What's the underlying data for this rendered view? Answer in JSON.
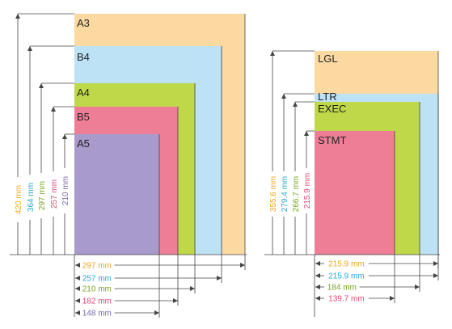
{
  "palette": {
    "orange": "#FCD9A0",
    "blue": "#BDE1F5",
    "green": "#BFD84A",
    "pink": "#EE7E96",
    "purple": "#A89ACB",
    "text_orange": "#F5A623",
    "text_blue": "#29A8D8",
    "text_green": "#7AA428",
    "text_pink": "#E34A72",
    "text_purple": "#7B68B0",
    "line": "#444444"
  },
  "iso_series": {
    "sizes": [
      {
        "name": "A3",
        "width": "297 mm",
        "height": "420 mm",
        "color": "orange",
        "text": "text_orange"
      },
      {
        "name": "B4",
        "width": "257 mm",
        "height": "364 mm",
        "color": "blue",
        "text": "text_blue"
      },
      {
        "name": "A4",
        "width": "210 mm",
        "height": "297 mm",
        "color": "green",
        "text": "text_green"
      },
      {
        "name": "B5",
        "width": "182 mm",
        "height": "257 mm",
        "color": "pink",
        "text": "text_pink"
      },
      {
        "name": "A5",
        "width": "148 mm",
        "height": "210 mm",
        "color": "purple",
        "text": "text_purple"
      }
    ]
  },
  "us_series": {
    "sizes": [
      {
        "name": "LGL",
        "width": "215.9 mm",
        "height": "355.6 mm",
        "color": "orange",
        "text": "text_orange"
      },
      {
        "name": "LTR",
        "width": "215.9 mm",
        "height": "279.4 mm",
        "color": "blue",
        "text": "text_blue"
      },
      {
        "name": "EXEC",
        "width": "184 mm",
        "height": "266.7 mm",
        "color": "green",
        "text": "text_green"
      },
      {
        "name": "STMT",
        "width": "139.7 mm",
        "height": "215.9 mm",
        "color": "pink",
        "text": "text_pink"
      }
    ]
  }
}
